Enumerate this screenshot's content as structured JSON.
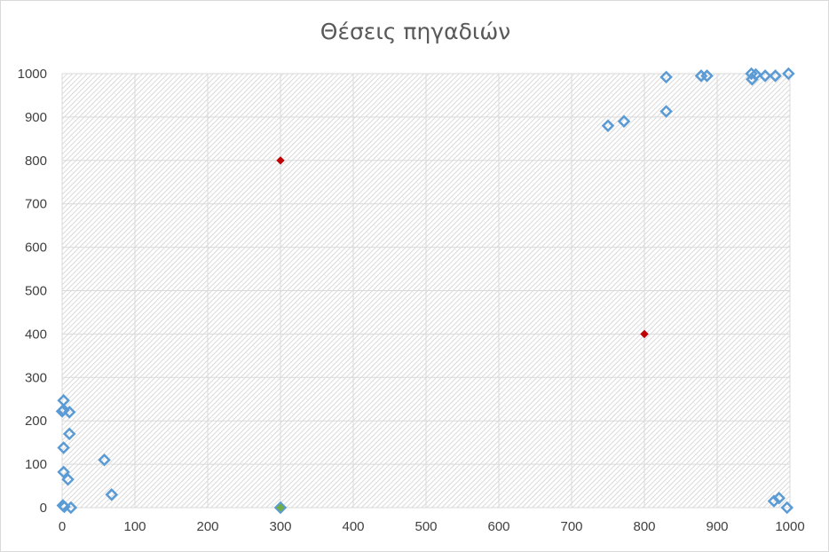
{
  "chart_data": {
    "type": "scatter",
    "title": "Θέσεις πηγαδιών",
    "xlabel": "",
    "ylabel": "",
    "xlim": [
      0,
      1000
    ],
    "ylim": [
      0,
      1000
    ],
    "xticks": [
      0,
      100,
      200,
      300,
      400,
      500,
      600,
      700,
      800,
      900,
      1000
    ],
    "yticks": [
      0,
      100,
      200,
      300,
      400,
      500,
      600,
      700,
      800,
      900,
      1000
    ],
    "xtick_labels": [
      "0",
      "100",
      "200",
      "300",
      "400",
      "500",
      "600",
      "700",
      "800",
      "900",
      "1000"
    ],
    "ytick_labels": [
      "0",
      "100",
      "200",
      "300",
      "400",
      "500",
      "600",
      "700",
      "800",
      "900",
      "1000"
    ],
    "grid": true,
    "legend": "none",
    "series": [
      {
        "color": "#5b9bd5",
        "marker": "hollow-diamond",
        "x": [
          2,
          2,
          0,
          10,
          10,
          2,
          2,
          8,
          58,
          68,
          1,
          3,
          12,
          300,
          750,
          772,
          830,
          830,
          878,
          886,
          947,
          953,
          948,
          966,
          980,
          998,
          978,
          985,
          996
        ],
        "y": [
          247,
          225,
          222,
          220,
          170,
          138,
          82,
          65,
          110,
          30,
          5,
          2,
          0,
          0,
          880,
          890,
          913,
          992,
          995,
          995,
          1000,
          998,
          987,
          995,
          995,
          1000,
          15,
          22,
          0
        ]
      },
      {
        "color": "#c00000",
        "marker": "filled-diamond",
        "x": [
          300,
          800
        ],
        "y": [
          800,
          400
        ]
      },
      {
        "color": "#70ad47",
        "marker": "filled-diamond",
        "x": [
          300
        ],
        "y": [
          0
        ]
      }
    ]
  }
}
